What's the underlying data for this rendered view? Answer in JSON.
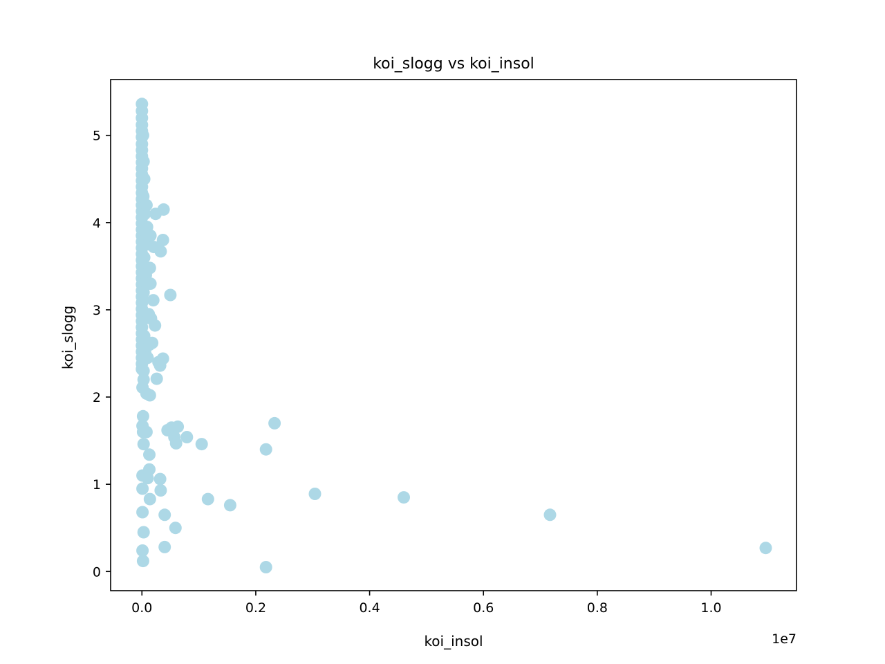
{
  "chart_data": {
    "type": "scatter",
    "title": "koi_slogg vs koi_insol",
    "xlabel": "koi_insol",
    "ylabel": "koi_slogg",
    "x_offset_text": "1e7",
    "x_scale_factor": 10000000,
    "xlim": [
      -550000,
      11500000
    ],
    "ylim": [
      -0.22,
      5.64
    ],
    "x_ticks": [
      0,
      2000000,
      4000000,
      6000000,
      8000000,
      10000000
    ],
    "x_tick_labels": [
      "0.0",
      "0.2",
      "0.4",
      "0.6",
      "0.8",
      "1.0"
    ],
    "y_ticks": [
      0,
      1,
      2,
      3,
      4,
      5
    ],
    "y_tick_labels": [
      "0",
      "1",
      "2",
      "3",
      "4",
      "5"
    ],
    "grid": false,
    "legend": "none",
    "marker_color": "#add8e6",
    "points": [
      {
        "x": 0,
        "y": 5.36
      },
      {
        "x": 0,
        "y": 5.28
      },
      {
        "x": 0,
        "y": 5.2
      },
      {
        "x": 0,
        "y": 5.12
      },
      {
        "x": 0,
        "y": 5.05
      },
      {
        "x": 0,
        "y": 4.98
      },
      {
        "x": 0,
        "y": 4.9
      },
      {
        "x": 0,
        "y": 4.83
      },
      {
        "x": 0,
        "y": 4.76
      },
      {
        "x": 0,
        "y": 4.69
      },
      {
        "x": 0,
        "y": 4.62
      },
      {
        "x": 0,
        "y": 4.55
      },
      {
        "x": 0,
        "y": 4.48
      },
      {
        "x": 0,
        "y": 4.41
      },
      {
        "x": 0,
        "y": 4.34
      },
      {
        "x": 0,
        "y": 4.27
      },
      {
        "x": 0,
        "y": 4.2
      },
      {
        "x": 0,
        "y": 4.13
      },
      {
        "x": 0,
        "y": 4.06
      },
      {
        "x": 0,
        "y": 3.99
      },
      {
        "x": 0,
        "y": 3.92
      },
      {
        "x": 0,
        "y": 3.85
      },
      {
        "x": 0,
        "y": 3.78
      },
      {
        "x": 0,
        "y": 3.71
      },
      {
        "x": 0,
        "y": 3.64
      },
      {
        "x": 0,
        "y": 3.57
      },
      {
        "x": 0,
        "y": 3.5
      },
      {
        "x": 0,
        "y": 3.43
      },
      {
        "x": 0,
        "y": 3.36
      },
      {
        "x": 0,
        "y": 3.29
      },
      {
        "x": 0,
        "y": 3.22
      },
      {
        "x": 0,
        "y": 3.15
      },
      {
        "x": 0,
        "y": 3.08
      },
      {
        "x": 0,
        "y": 3.01
      },
      {
        "x": 0,
        "y": 2.94
      },
      {
        "x": 0,
        "y": 2.87
      },
      {
        "x": 0,
        "y": 2.8
      },
      {
        "x": 0,
        "y": 2.73
      },
      {
        "x": 0,
        "y": 2.66
      },
      {
        "x": 0,
        "y": 2.59
      },
      {
        "x": 0,
        "y": 2.52
      },
      {
        "x": 0,
        "y": 2.45
      },
      {
        "x": 0,
        "y": 2.38
      },
      {
        "x": 0,
        "y": 2.32
      },
      {
        "x": 20000,
        "y": 5.0
      },
      {
        "x": 30000,
        "y": 4.7
      },
      {
        "x": 40000,
        "y": 4.5
      },
      {
        "x": 25000,
        "y": 4.3
      },
      {
        "x": 50000,
        "y": 4.1
      },
      {
        "x": 60000,
        "y": 3.9
      },
      {
        "x": 40000,
        "y": 3.6
      },
      {
        "x": 70000,
        "y": 3.4
      },
      {
        "x": 30000,
        "y": 3.2
      },
      {
        "x": 50000,
        "y": 2.9
      },
      {
        "x": 40000,
        "y": 2.7
      },
      {
        "x": 60000,
        "y": 2.5
      },
      {
        "x": 30000,
        "y": 2.3
      },
      {
        "x": 80000,
        "y": 4.2
      },
      {
        "x": 90000,
        "y": 3.95
      },
      {
        "x": 100000,
        "y": 3.75
      },
      {
        "x": 110000,
        "y": 3.3
      },
      {
        "x": 120000,
        "y": 2.95
      },
      {
        "x": 130000,
        "y": 2.6
      },
      {
        "x": 100000,
        "y": 2.45
      },
      {
        "x": 150000,
        "y": 3.85
      },
      {
        "x": 140000,
        "y": 3.48
      },
      {
        "x": 150000,
        "y": 3.3
      },
      {
        "x": 160000,
        "y": 2.9
      },
      {
        "x": 180000,
        "y": 2.62
      },
      {
        "x": 200000,
        "y": 3.11
      },
      {
        "x": 230000,
        "y": 2.82
      },
      {
        "x": 210000,
        "y": 3.72
      },
      {
        "x": 240000,
        "y": 4.1
      },
      {
        "x": 260000,
        "y": 2.21
      },
      {
        "x": 290000,
        "y": 2.4
      },
      {
        "x": 320000,
        "y": 2.36
      },
      {
        "x": 370000,
        "y": 2.44
      },
      {
        "x": 330000,
        "y": 3.67
      },
      {
        "x": 370000,
        "y": 3.8
      },
      {
        "x": 380000,
        "y": 4.15
      },
      {
        "x": 500000,
        "y": 3.17
      },
      {
        "x": 10000,
        "y": 2.11
      },
      {
        "x": 30000,
        "y": 2.2
      },
      {
        "x": 80000,
        "y": 2.04
      },
      {
        "x": 140000,
        "y": 2.02
      },
      {
        "x": 20000,
        "y": 1.78
      },
      {
        "x": 10000,
        "y": 1.67
      },
      {
        "x": 20000,
        "y": 1.6
      },
      {
        "x": 80000,
        "y": 1.6
      },
      {
        "x": 30000,
        "y": 1.46
      },
      {
        "x": 130000,
        "y": 1.34
      },
      {
        "x": 130000,
        "y": 1.17
      },
      {
        "x": 10000,
        "y": 1.1
      },
      {
        "x": 100000,
        "y": 1.07
      },
      {
        "x": 320000,
        "y": 1.06
      },
      {
        "x": 10000,
        "y": 0.95
      },
      {
        "x": 330000,
        "y": 0.93
      },
      {
        "x": 140000,
        "y": 0.83
      },
      {
        "x": 10000,
        "y": 0.68
      },
      {
        "x": 400000,
        "y": 0.65
      },
      {
        "x": 30000,
        "y": 0.45
      },
      {
        "x": 590000,
        "y": 0.5
      },
      {
        "x": 400000,
        "y": 0.28
      },
      {
        "x": 10000,
        "y": 0.24
      },
      {
        "x": 20000,
        "y": 0.12
      },
      {
        "x": 450000,
        "y": 1.62
      },
      {
        "x": 520000,
        "y": 1.65
      },
      {
        "x": 570000,
        "y": 1.54
      },
      {
        "x": 600000,
        "y": 1.47
      },
      {
        "x": 630000,
        "y": 1.66
      },
      {
        "x": 790000,
        "y": 1.54
      },
      {
        "x": 1050000,
        "y": 1.46
      },
      {
        "x": 1160000,
        "y": 0.83
      },
      {
        "x": 1550000,
        "y": 0.76
      },
      {
        "x": 2180000,
        "y": 1.4
      },
      {
        "x": 2330000,
        "y": 1.7
      },
      {
        "x": 2180000,
        "y": 0.05
      },
      {
        "x": 3040000,
        "y": 0.89
      },
      {
        "x": 4600000,
        "y": 0.85
      },
      {
        "x": 7170000,
        "y": 0.65
      },
      {
        "x": 10960000,
        "y": 0.27
      }
    ]
  }
}
